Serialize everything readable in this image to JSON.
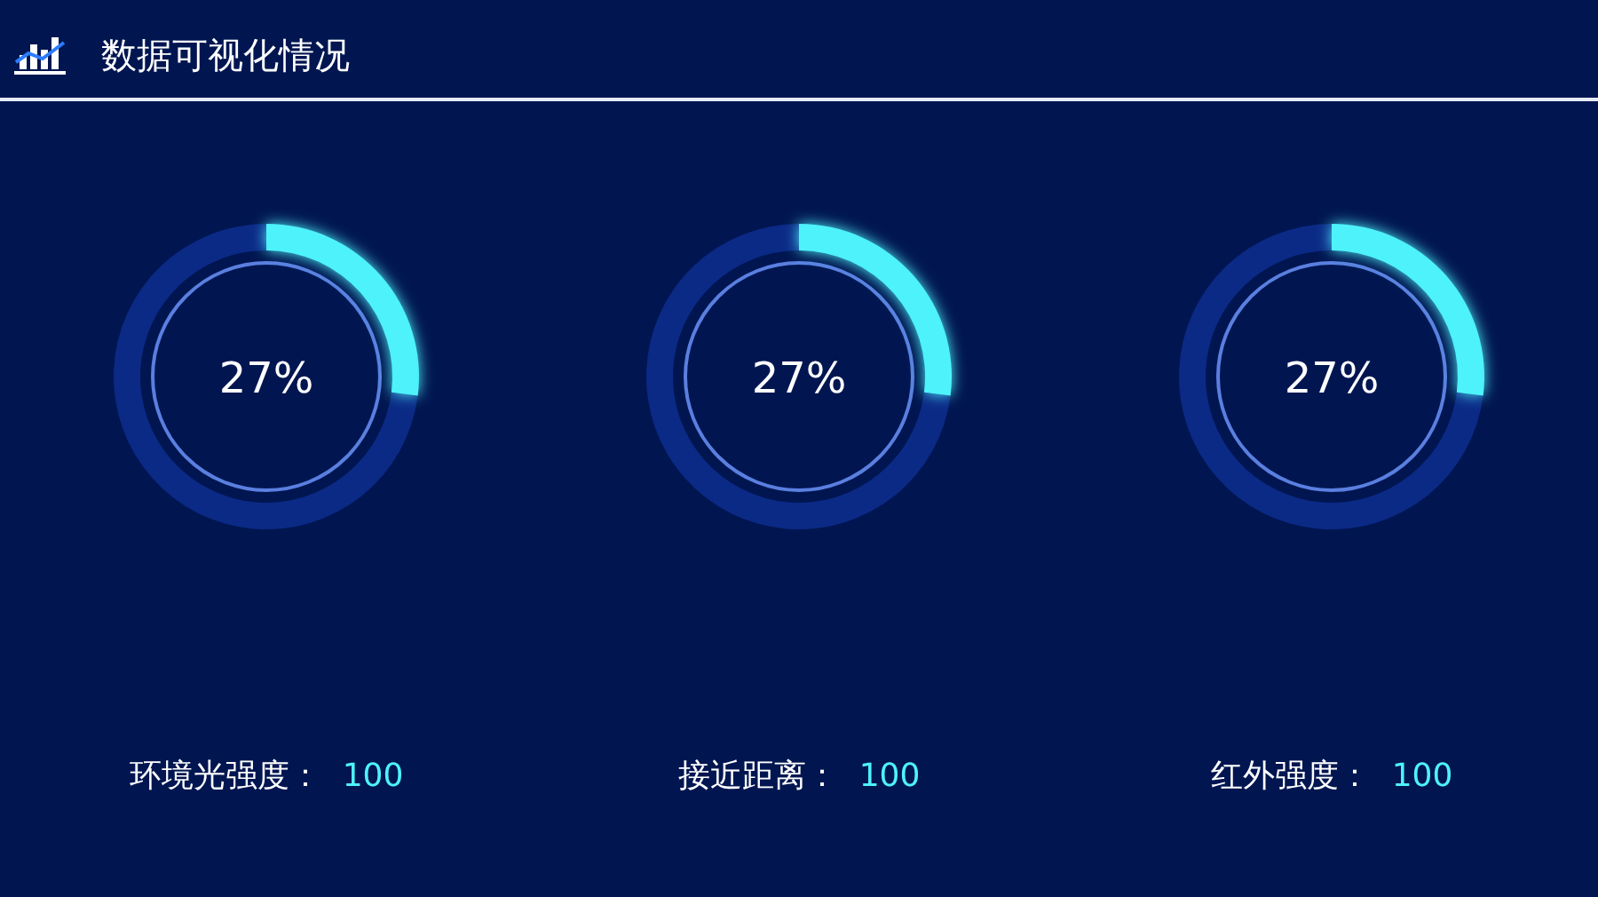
{
  "chart_data": [
    {
      "type": "donut",
      "title": "数据可视化情况",
      "categories": [
        null,
        null
      ],
      "values": [
        27,
        73
      ],
      "colors": [
        "#4ef2fb",
        "#0b2a86"
      ],
      "annotations": [
        "27%",
        "环境光强度：",
        "100"
      ]
    },
    {
      "type": "donut",
      "categories": [
        null,
        null
      ],
      "values": [
        27,
        73
      ],
      "colors": [
        "#4ef2fb",
        "#0b2a86"
      ],
      "annotations": [
        "27%",
        "接近距离：",
        "100"
      ]
    },
    {
      "type": "donut",
      "categories": [
        null,
        null
      ],
      "values": [
        27,
        73
      ],
      "colors": [
        "#4ef2fb",
        "#0b2a86"
      ],
      "annotations": [
        "27%",
        "红外强度：",
        "100"
      ]
    }
  ]
}
